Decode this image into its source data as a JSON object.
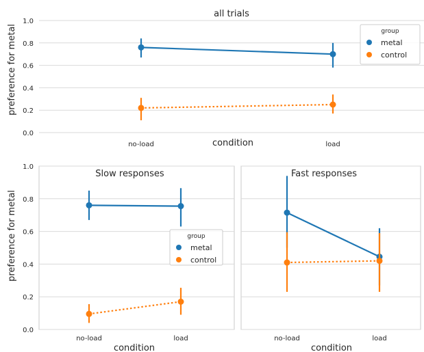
{
  "colors": {
    "metal": "#1f77b4",
    "control": "#ff7f0e",
    "grid": "#d9d9d9",
    "axis": "#c8c8c8"
  },
  "legend_title": "group",
  "chart_data": [
    {
      "type": "line",
      "title": "all trials",
      "xlabel": "condition",
      "ylabel": "preference for metal",
      "categories": [
        "no-load",
        "load"
      ],
      "ylim": [
        0,
        1.0
      ],
      "yticks": [
        "0.0",
        "0.2",
        "0.4",
        "0.6",
        "0.8",
        "1.0"
      ],
      "grid": true,
      "legend": "top-right",
      "series": [
        {
          "name": "metal",
          "color": "#1f77b4",
          "style": "solid",
          "values": [
            0.76,
            0.7
          ],
          "ci_low": [
            0.67,
            0.58
          ],
          "ci_high": [
            0.84,
            0.8
          ]
        },
        {
          "name": "control",
          "color": "#ff7f0e",
          "style": "dotted",
          "values": [
            0.22,
            0.25
          ],
          "ci_low": [
            0.11,
            0.17
          ],
          "ci_high": [
            0.31,
            0.34
          ]
        }
      ]
    },
    {
      "type": "line",
      "title": "Slow responses",
      "xlabel": "condition",
      "ylabel": "preference for metal",
      "categories": [
        "no-load",
        "load"
      ],
      "ylim": [
        0,
        1.0
      ],
      "yticks": [
        "0.0",
        "0.2",
        "0.4",
        "0.6",
        "0.8",
        "1.0"
      ],
      "grid": true,
      "legend": "center-right",
      "series": [
        {
          "name": "metal",
          "color": "#1f77b4",
          "style": "solid",
          "values": [
            0.76,
            0.755
          ],
          "ci_low": [
            0.67,
            0.63
          ],
          "ci_high": [
            0.85,
            0.865
          ]
        },
        {
          "name": "control",
          "color": "#ff7f0e",
          "style": "dotted",
          "values": [
            0.095,
            0.17
          ],
          "ci_low": [
            0.04,
            0.09
          ],
          "ci_high": [
            0.155,
            0.255
          ]
        }
      ]
    },
    {
      "type": "line",
      "title": "Fast responses",
      "xlabel": "condition",
      "ylabel": "",
      "categories": [
        "no-load",
        "load"
      ],
      "ylim": [
        0,
        1.0
      ],
      "yticks": [],
      "grid": true,
      "legend": "",
      "series": [
        {
          "name": "metal",
          "color": "#1f77b4",
          "style": "solid",
          "values": [
            0.715,
            0.445
          ],
          "ci_low": [
            0.5,
            0.27
          ],
          "ci_high": [
            0.94,
            0.62
          ]
        },
        {
          "name": "control",
          "color": "#ff7f0e",
          "style": "dotted",
          "values": [
            0.41,
            0.42
          ],
          "ci_low": [
            0.23,
            0.23
          ],
          "ci_high": [
            0.595,
            0.59
          ]
        }
      ]
    }
  ]
}
